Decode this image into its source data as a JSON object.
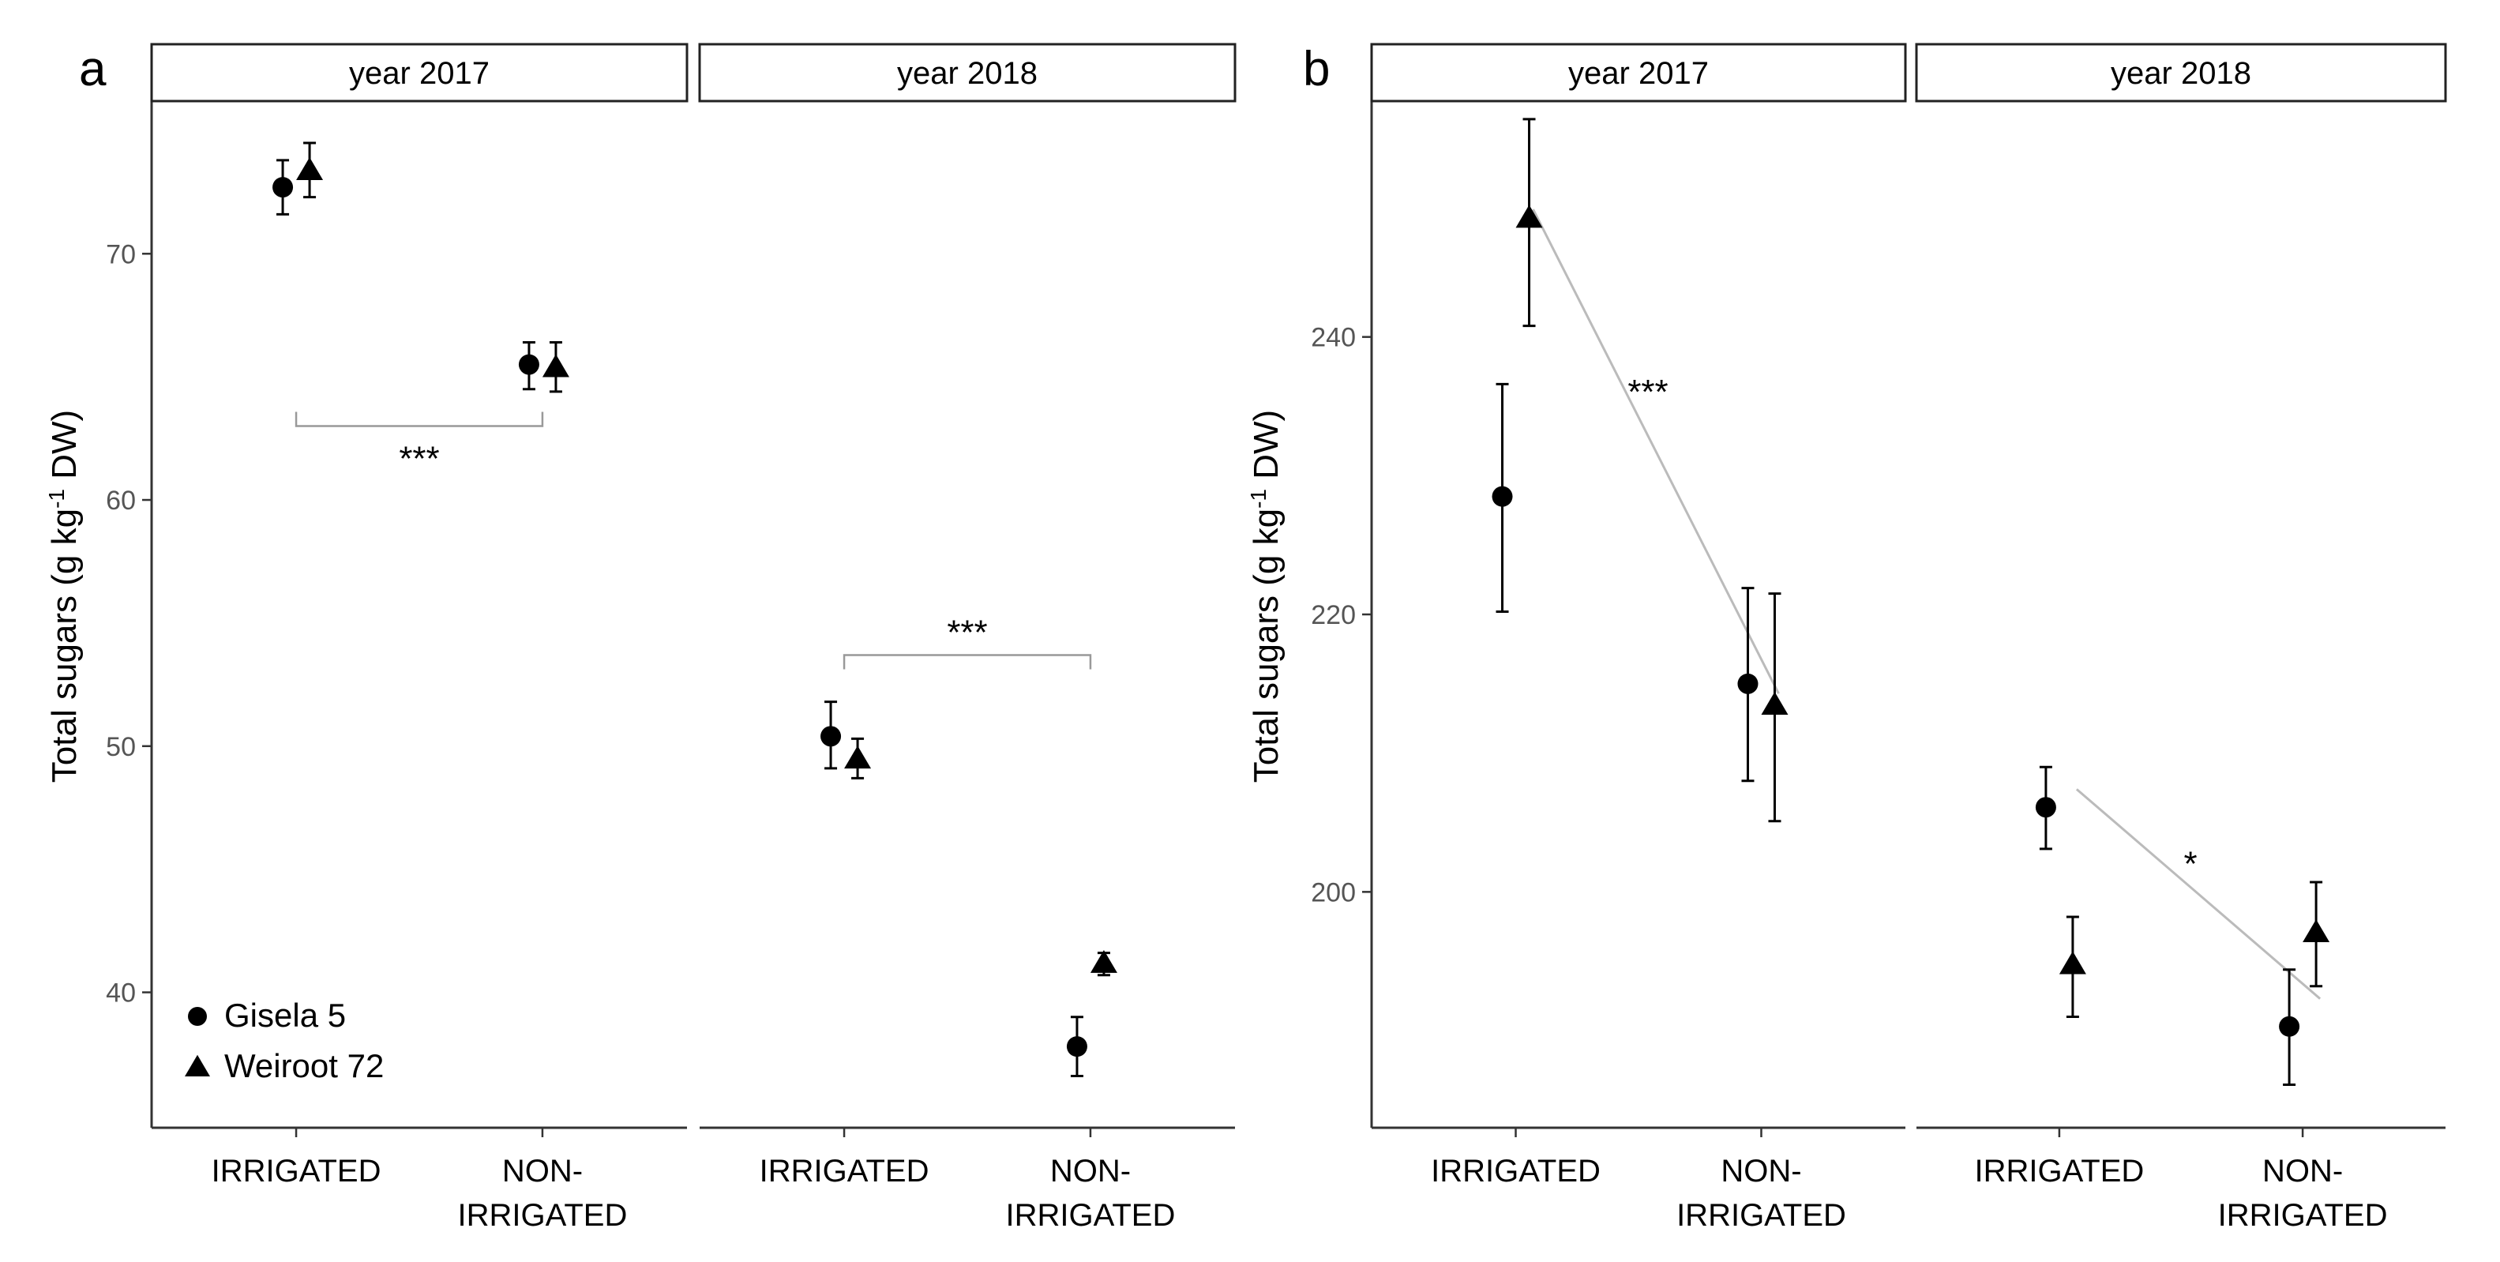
{
  "chart_data": [
    {
      "type": "scatter",
      "panel_label": "a",
      "ylabel_main": "Total sugars (g kg",
      "ylabel_sup": "-1",
      "ylabel_tail": " DW)",
      "ylim": [
        34.5,
        76.2
      ],
      "yticks": [
        40,
        50,
        60,
        70
      ],
      "grid": false,
      "legend_position": "bottom-left",
      "legend": [
        {
          "name": "Gisela 5",
          "marker": "circle"
        },
        {
          "name": "Weiroot 72",
          "marker": "triangle"
        }
      ],
      "facets": [
        {
          "strip": "year 2017",
          "categories": [
            "IRRIGATED",
            "NON-\nIRRIGATED"
          ],
          "series": [
            {
              "name": "Gisela 5",
              "marker": "circle",
              "values": [
                72.7,
                65.5
              ],
              "err_low": [
                71.6,
                64.5
              ],
              "err_high": [
                73.8,
                66.4
              ]
            },
            {
              "name": "Weiroot 72",
              "marker": "triangle",
              "values": [
                73.4,
                65.4
              ],
              "err_low": [
                72.3,
                64.4
              ],
              "err_high": [
                74.5,
                66.4
              ]
            }
          ],
          "bracket": {
            "from": 0,
            "to": 1,
            "y": 63.0,
            "label": "***",
            "side": "below"
          }
        },
        {
          "strip": "year 2018",
          "categories": [
            "IRRIGATED",
            "NON-\nIRRIGATED"
          ],
          "series": [
            {
              "name": "Gisela 5",
              "marker": "circle",
              "values": [
                50.4,
                37.8
              ],
              "err_low": [
                49.1,
                36.6
              ],
              "err_high": [
                51.8,
                39.0
              ]
            },
            {
              "name": "Weiroot 72",
              "marker": "triangle",
              "values": [
                49.5,
                41.2
              ],
              "err_low": [
                48.7,
                40.7
              ],
              "err_high": [
                50.3,
                41.6
              ]
            }
          ],
          "bracket": {
            "from": 0,
            "to": 1,
            "y": 53.7,
            "label": "***",
            "side": "above"
          }
        }
      ]
    },
    {
      "type": "scatter",
      "panel_label": "b",
      "ylabel_main": "Total sugars (g kg",
      "ylabel_sup": "-1",
      "ylabel_tail": " DW)",
      "ylim": [
        183,
        257
      ],
      "yticks": [
        200,
        220,
        240
      ],
      "grid": false,
      "facets": [
        {
          "strip": "year 2017",
          "categories": [
            "IRRIGATED",
            "NON-\nIRRIGATED"
          ],
          "series": [
            {
              "name": "Gisela 5",
              "marker": "circle",
              "values": [
                228.5,
                215.0
              ],
              "err_low": [
                220.2,
                208.0
              ],
              "err_high": [
                236.6,
                221.9
              ]
            },
            {
              "name": "Weiroot 72",
              "marker": "triangle",
              "values": [
                248.6,
                213.5
              ],
              "err_low": [
                240.8,
                205.1
              ],
              "err_high": [
                255.7,
                221.5
              ]
            }
          ],
          "trend": {
            "from": 0,
            "to": 1,
            "y_start": 249.2,
            "y_end": 214.3,
            "label": "***",
            "label_y": 235.2
          }
        },
        {
          "strip": "year 2018",
          "categories": [
            "IRRIGATED",
            "NON-\nIRRIGATED"
          ],
          "series": [
            {
              "name": "Gisela 5",
              "marker": "circle",
              "values": [
                206.1,
                190.3
              ],
              "err_low": [
                203.1,
                186.1
              ],
              "err_high": [
                209.0,
                194.4
              ]
            },
            {
              "name": "Weiroot 72",
              "marker": "triangle",
              "values": [
                194.8,
                197.1
              ],
              "err_low": [
                191.0,
                193.2
              ],
              "err_high": [
                198.2,
                200.7
              ]
            }
          ],
          "trend": {
            "from": 0,
            "to": 1,
            "y_start": 207.4,
            "y_end": 192.3,
            "label": "*",
            "label_y": 201.2
          }
        }
      ]
    }
  ]
}
